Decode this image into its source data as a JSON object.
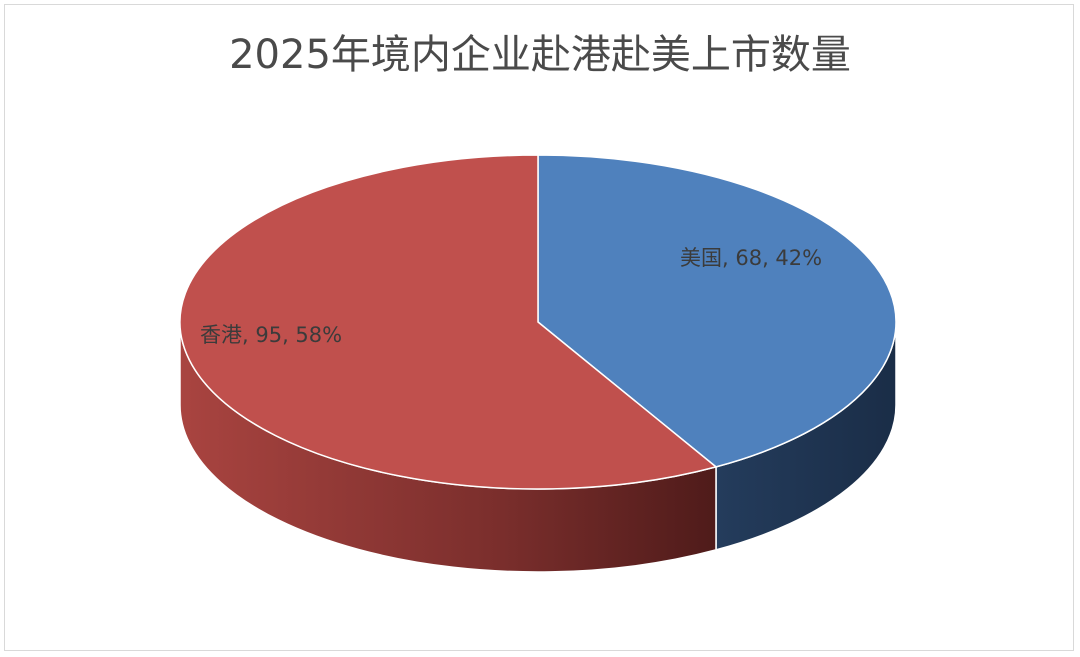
{
  "chart_data": {
    "type": "pie",
    "title": "2025年境内企业赴港赴美上市数量",
    "slices": [
      {
        "label": "美国",
        "value": 68,
        "percent": "42%",
        "color": "#4f81bd"
      },
      {
        "label": "香港",
        "value": 95,
        "percent": "58%",
        "color": "#c0504d"
      }
    ],
    "style": "3d"
  }
}
